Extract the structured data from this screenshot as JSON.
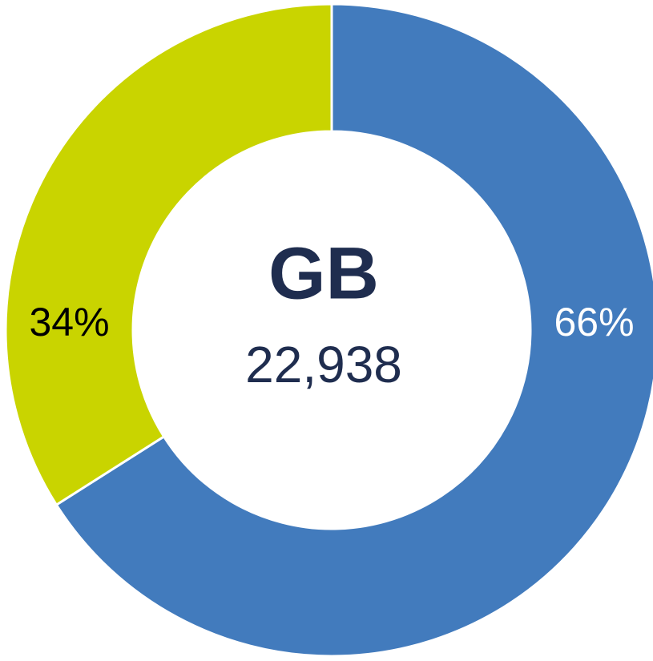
{
  "chart_data": {
    "type": "pie",
    "values": [
      66,
      34
    ],
    "value_labels": [
      "66%",
      "34%"
    ],
    "colors": [
      "#427bbd",
      "#c9d400"
    ],
    "label_colors": [
      "#ffffff",
      "#000000"
    ],
    "center_title": "GB",
    "center_label": "22,938"
  }
}
